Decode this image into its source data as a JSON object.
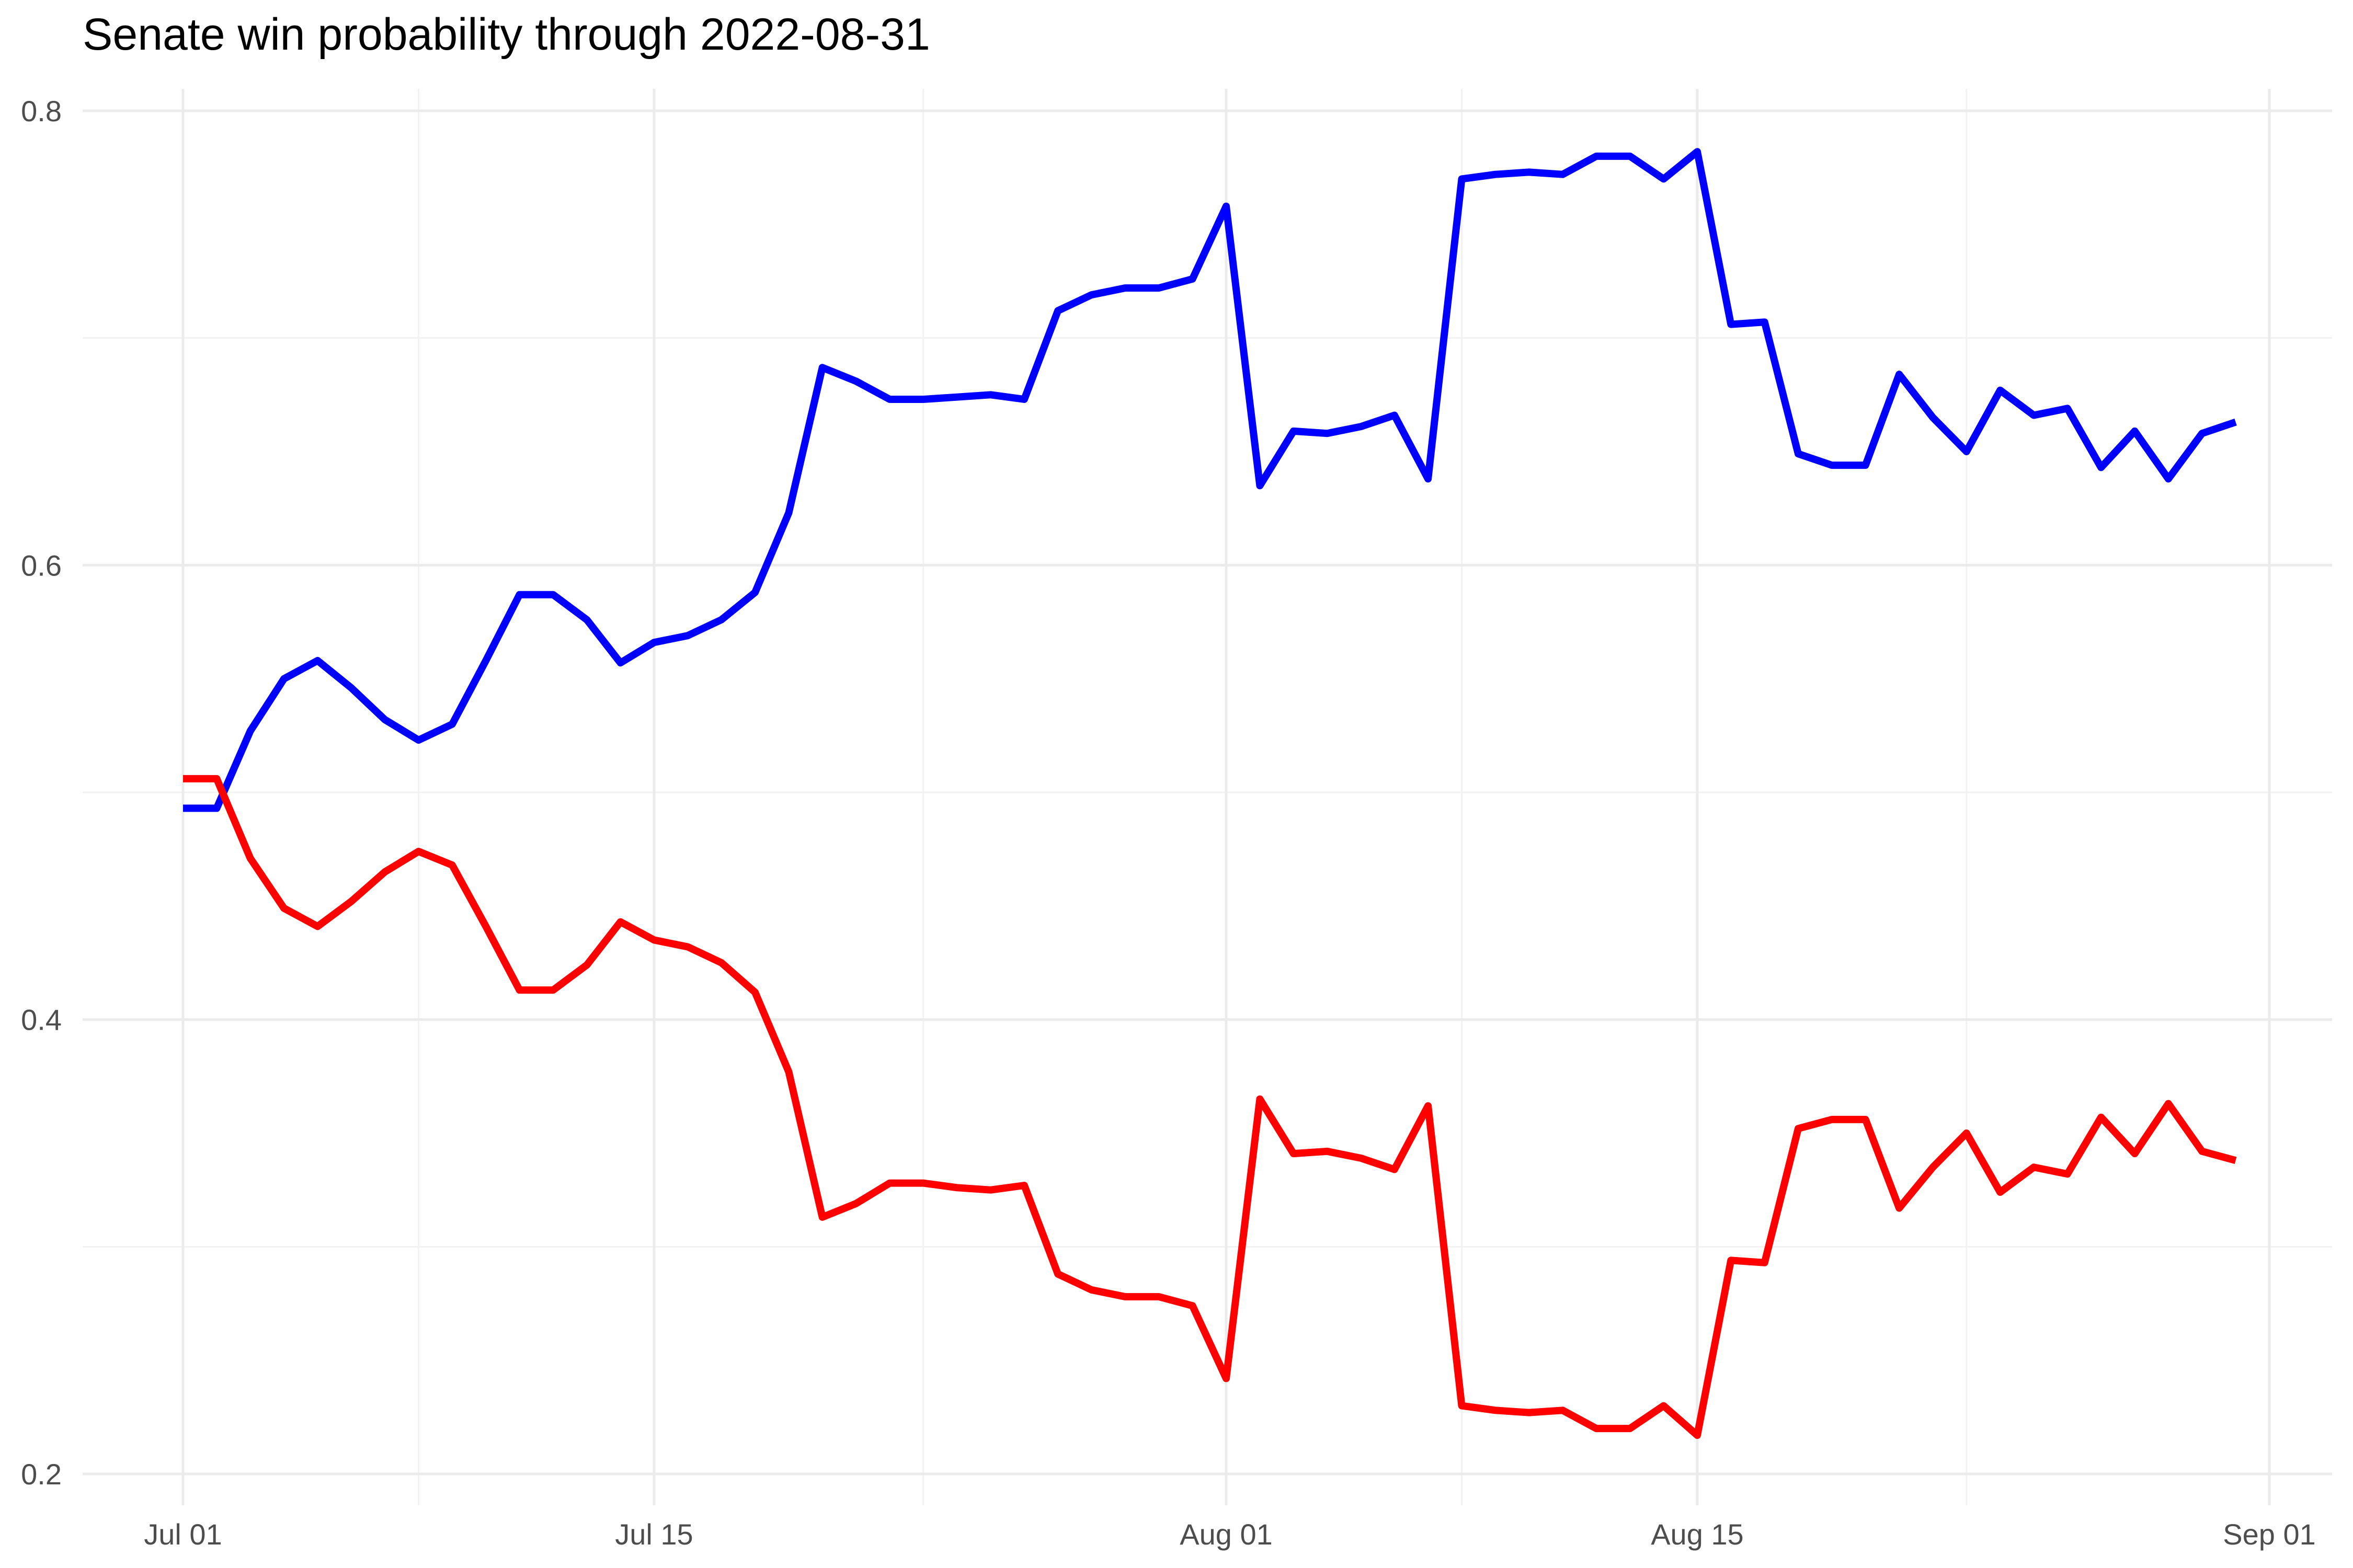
{
  "chart_data": {
    "type": "line",
    "title": "Senate win probability through 2022-08-31",
    "xlabel": "",
    "ylabel": "",
    "x_type": "date",
    "xlim": [
      "2022-07-01",
      "2022-09-01"
    ],
    "ylim": [
      0.2,
      0.8
    ],
    "y_major_ticks": [
      0.2,
      0.4,
      0.6,
      0.8
    ],
    "y_tick_labels": [
      "0.2",
      "0.4",
      "0.6",
      "0.8"
    ],
    "y_minor_ticks": [
      0.3,
      0.5,
      0.7
    ],
    "x_major_ticks": [
      "2022-07-01",
      "2022-07-15",
      "2022-08-01",
      "2022-08-15",
      "2022-09-01"
    ],
    "x_tick_labels": [
      "Jul 01",
      "Jul 15",
      "Aug 01",
      "Aug 15",
      "Sep 01"
    ],
    "x_minor_ticks": [
      "2022-07-08",
      "2022-07-23",
      "2022-08-08",
      "2022-08-23"
    ],
    "grid": true,
    "legend": "none",
    "series": [
      {
        "color": "#0000ff",
        "points": [
          [
            "2022-07-01",
            0.493
          ],
          [
            "2022-07-02",
            0.493
          ],
          [
            "2022-07-03",
            0.527
          ],
          [
            "2022-07-04",
            0.55
          ],
          [
            "2022-07-05",
            0.558
          ],
          [
            "2022-07-06",
            0.546
          ],
          [
            "2022-07-07",
            0.532
          ],
          [
            "2022-07-08",
            0.523
          ],
          [
            "2022-07-09",
            0.53
          ],
          [
            "2022-07-10",
            0.558
          ],
          [
            "2022-07-11",
            0.587
          ],
          [
            "2022-07-12",
            0.587
          ],
          [
            "2022-07-13",
            0.576
          ],
          [
            "2022-07-14",
            0.557
          ],
          [
            "2022-07-15",
            0.566
          ],
          [
            "2022-07-16",
            0.569
          ],
          [
            "2022-07-17",
            0.576
          ],
          [
            "2022-07-18",
            0.588
          ],
          [
            "2022-07-19",
            0.623
          ],
          [
            "2022-07-20",
            0.687
          ],
          [
            "2022-07-21",
            0.681
          ],
          [
            "2022-07-22",
            0.673
          ],
          [
            "2022-07-23",
            0.673
          ],
          [
            "2022-07-24",
            0.674
          ],
          [
            "2022-07-25",
            0.675
          ],
          [
            "2022-07-26",
            0.673
          ],
          [
            "2022-07-27",
            0.712
          ],
          [
            "2022-07-28",
            0.719
          ],
          [
            "2022-07-29",
            0.722
          ],
          [
            "2022-07-30",
            0.722
          ],
          [
            "2022-07-31",
            0.726
          ],
          [
            "2022-08-01",
            0.758
          ],
          [
            "2022-08-02",
            0.635
          ],
          [
            "2022-08-03",
            0.659
          ],
          [
            "2022-08-04",
            0.658
          ],
          [
            "2022-08-05",
            0.661
          ],
          [
            "2022-08-06",
            0.666
          ],
          [
            "2022-08-07",
            0.638
          ],
          [
            "2022-08-08",
            0.77
          ],
          [
            "2022-08-09",
            0.772
          ],
          [
            "2022-08-10",
            0.773
          ],
          [
            "2022-08-11",
            0.772
          ],
          [
            "2022-08-12",
            0.78
          ],
          [
            "2022-08-13",
            0.78
          ],
          [
            "2022-08-14",
            0.77
          ],
          [
            "2022-08-15",
            0.782
          ],
          [
            "2022-08-16",
            0.706
          ],
          [
            "2022-08-17",
            0.707
          ],
          [
            "2022-08-18",
            0.649
          ],
          [
            "2022-08-19",
            0.644
          ],
          [
            "2022-08-20",
            0.644
          ],
          [
            "2022-08-21",
            0.684
          ],
          [
            "2022-08-22",
            0.665
          ],
          [
            "2022-08-23",
            0.65
          ],
          [
            "2022-08-24",
            0.677
          ],
          [
            "2022-08-25",
            0.666
          ],
          [
            "2022-08-26",
            0.669
          ],
          [
            "2022-08-27",
            0.643
          ],
          [
            "2022-08-28",
            0.659
          ],
          [
            "2022-08-29",
            0.638
          ],
          [
            "2022-08-30",
            0.658
          ],
          [
            "2022-08-31",
            0.663
          ]
        ]
      },
      {
        "color": "#ff0000",
        "points": [
          [
            "2022-07-01",
            0.506
          ],
          [
            "2022-07-02",
            0.506
          ],
          [
            "2022-07-03",
            0.471
          ],
          [
            "2022-07-04",
            0.449
          ],
          [
            "2022-07-05",
            0.441
          ],
          [
            "2022-07-06",
            0.452
          ],
          [
            "2022-07-07",
            0.465
          ],
          [
            "2022-07-08",
            0.474
          ],
          [
            "2022-07-09",
            0.468
          ],
          [
            "2022-07-10",
            0.441
          ],
          [
            "2022-07-11",
            0.413
          ],
          [
            "2022-07-12",
            0.413
          ],
          [
            "2022-07-13",
            0.424
          ],
          [
            "2022-07-14",
            0.443
          ],
          [
            "2022-07-15",
            0.435
          ],
          [
            "2022-07-16",
            0.432
          ],
          [
            "2022-07-17",
            0.425
          ],
          [
            "2022-07-18",
            0.412
          ],
          [
            "2022-07-19",
            0.377
          ],
          [
            "2022-07-20",
            0.313
          ],
          [
            "2022-07-21",
            0.319
          ],
          [
            "2022-07-22",
            0.328
          ],
          [
            "2022-07-23",
            0.328
          ],
          [
            "2022-07-24",
            0.326
          ],
          [
            "2022-07-25",
            0.325
          ],
          [
            "2022-07-26",
            0.327
          ],
          [
            "2022-07-27",
            0.288
          ],
          [
            "2022-07-28",
            0.281
          ],
          [
            "2022-07-29",
            0.278
          ],
          [
            "2022-07-30",
            0.278
          ],
          [
            "2022-07-31",
            0.274
          ],
          [
            "2022-08-01",
            0.242
          ],
          [
            "2022-08-02",
            0.365
          ],
          [
            "2022-08-03",
            0.341
          ],
          [
            "2022-08-04",
            0.342
          ],
          [
            "2022-08-05",
            0.339
          ],
          [
            "2022-08-06",
            0.334
          ],
          [
            "2022-08-07",
            0.362
          ],
          [
            "2022-08-08",
            0.23
          ],
          [
            "2022-08-09",
            0.228
          ],
          [
            "2022-08-10",
            0.227
          ],
          [
            "2022-08-11",
            0.228
          ],
          [
            "2022-08-12",
            0.22
          ],
          [
            "2022-08-13",
            0.22
          ],
          [
            "2022-08-14",
            0.23
          ],
          [
            "2022-08-15",
            0.217
          ],
          [
            "2022-08-16",
            0.294
          ],
          [
            "2022-08-17",
            0.293
          ],
          [
            "2022-08-18",
            0.352
          ],
          [
            "2022-08-19",
            0.356
          ],
          [
            "2022-08-20",
            0.356
          ],
          [
            "2022-08-21",
            0.317
          ],
          [
            "2022-08-22",
            0.335
          ],
          [
            "2022-08-23",
            0.35
          ],
          [
            "2022-08-24",
            0.324
          ],
          [
            "2022-08-25",
            0.335
          ],
          [
            "2022-08-26",
            0.332
          ],
          [
            "2022-08-27",
            0.357
          ],
          [
            "2022-08-28",
            0.341
          ],
          [
            "2022-08-29",
            0.363
          ],
          [
            "2022-08-30",
            0.342
          ],
          [
            "2022-08-31",
            0.338
          ]
        ]
      }
    ]
  }
}
